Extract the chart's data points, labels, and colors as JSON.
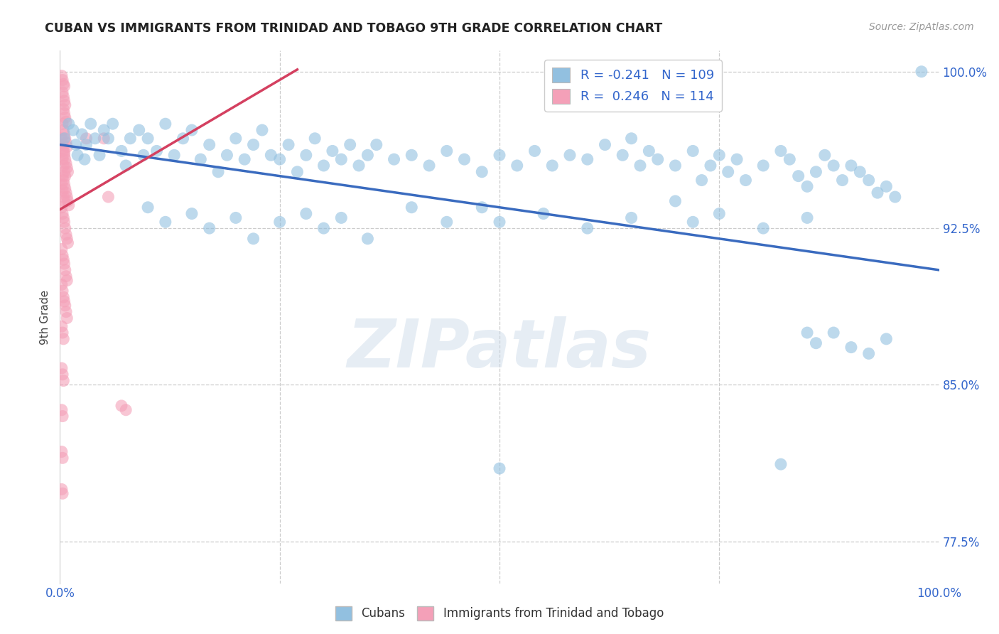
{
  "title": "CUBAN VS IMMIGRANTS FROM TRINIDAD AND TOBAGO 9TH GRADE CORRELATION CHART",
  "source": "Source: ZipAtlas.com",
  "ylabel": "9th Grade",
  "watermark": "ZIPatlas",
  "legend_blue_r": "-0.241",
  "legend_blue_n": "109",
  "legend_pink_r": "0.246",
  "legend_pink_n": "114",
  "legend_label_blue": "Cubans",
  "legend_label_pink": "Immigrants from Trinidad and Tobago",
  "xmin": 0.0,
  "xmax": 1.0,
  "ymin": 0.755,
  "ymax": 1.01,
  "ytick_vals": [
    0.775,
    0.85,
    0.925,
    1.0
  ],
  "ytick_labels": [
    "77.5%",
    "85.0%",
    "92.5%",
    "100.0%"
  ],
  "title_color": "#222222",
  "source_color": "#999999",
  "blue_color": "#92c0e0",
  "pink_color": "#f4a0b8",
  "blue_line_color": "#3a6bbf",
  "pink_line_color": "#d44060",
  "blue_line_x": [
    0.0,
    1.0
  ],
  "blue_line_y": [
    0.965,
    0.905
  ],
  "pink_line_x": [
    0.0,
    0.27
  ],
  "pink_line_y": [
    0.934,
    1.001
  ],
  "blue_scatter": [
    [
      0.005,
      0.968
    ],
    [
      0.01,
      0.975
    ],
    [
      0.015,
      0.972
    ],
    [
      0.018,
      0.965
    ],
    [
      0.02,
      0.96
    ],
    [
      0.025,
      0.97
    ],
    [
      0.028,
      0.958
    ],
    [
      0.03,
      0.965
    ],
    [
      0.035,
      0.975
    ],
    [
      0.04,
      0.968
    ],
    [
      0.045,
      0.96
    ],
    [
      0.05,
      0.972
    ],
    [
      0.055,
      0.968
    ],
    [
      0.06,
      0.975
    ],
    [
      0.07,
      0.962
    ],
    [
      0.075,
      0.955
    ],
    [
      0.08,
      0.968
    ],
    [
      0.09,
      0.972
    ],
    [
      0.095,
      0.96
    ],
    [
      0.1,
      0.968
    ],
    [
      0.11,
      0.962
    ],
    [
      0.12,
      0.975
    ],
    [
      0.13,
      0.96
    ],
    [
      0.14,
      0.968
    ],
    [
      0.15,
      0.972
    ],
    [
      0.16,
      0.958
    ],
    [
      0.17,
      0.965
    ],
    [
      0.18,
      0.952
    ],
    [
      0.19,
      0.96
    ],
    [
      0.2,
      0.968
    ],
    [
      0.21,
      0.958
    ],
    [
      0.22,
      0.965
    ],
    [
      0.23,
      0.972
    ],
    [
      0.24,
      0.96
    ],
    [
      0.25,
      0.958
    ],
    [
      0.26,
      0.965
    ],
    [
      0.27,
      0.952
    ],
    [
      0.28,
      0.96
    ],
    [
      0.29,
      0.968
    ],
    [
      0.3,
      0.955
    ],
    [
      0.31,
      0.962
    ],
    [
      0.32,
      0.958
    ],
    [
      0.33,
      0.965
    ],
    [
      0.34,
      0.955
    ],
    [
      0.35,
      0.96
    ],
    [
      0.36,
      0.965
    ],
    [
      0.38,
      0.958
    ],
    [
      0.4,
      0.96
    ],
    [
      0.42,
      0.955
    ],
    [
      0.44,
      0.962
    ],
    [
      0.46,
      0.958
    ],
    [
      0.48,
      0.952
    ],
    [
      0.5,
      0.96
    ],
    [
      0.52,
      0.955
    ],
    [
      0.54,
      0.962
    ],
    [
      0.56,
      0.955
    ],
    [
      0.58,
      0.96
    ],
    [
      0.6,
      0.958
    ],
    [
      0.62,
      0.965
    ],
    [
      0.64,
      0.96
    ],
    [
      0.65,
      0.968
    ],
    [
      0.66,
      0.955
    ],
    [
      0.67,
      0.962
    ],
    [
      0.68,
      0.958
    ],
    [
      0.7,
      0.955
    ],
    [
      0.72,
      0.962
    ],
    [
      0.73,
      0.948
    ],
    [
      0.74,
      0.955
    ],
    [
      0.75,
      0.96
    ],
    [
      0.76,
      0.952
    ],
    [
      0.77,
      0.958
    ],
    [
      0.78,
      0.948
    ],
    [
      0.8,
      0.955
    ],
    [
      0.82,
      0.962
    ],
    [
      0.83,
      0.958
    ],
    [
      0.84,
      0.95
    ],
    [
      0.85,
      0.945
    ],
    [
      0.86,
      0.952
    ],
    [
      0.87,
      0.96
    ],
    [
      0.88,
      0.955
    ],
    [
      0.89,
      0.948
    ],
    [
      0.9,
      0.955
    ],
    [
      0.91,
      0.952
    ],
    [
      0.92,
      0.948
    ],
    [
      0.93,
      0.942
    ],
    [
      0.94,
      0.945
    ],
    [
      0.95,
      0.94
    ],
    [
      0.1,
      0.935
    ],
    [
      0.12,
      0.928
    ],
    [
      0.15,
      0.932
    ],
    [
      0.17,
      0.925
    ],
    [
      0.2,
      0.93
    ],
    [
      0.22,
      0.92
    ],
    [
      0.25,
      0.928
    ],
    [
      0.28,
      0.932
    ],
    [
      0.3,
      0.925
    ],
    [
      0.32,
      0.93
    ],
    [
      0.35,
      0.92
    ],
    [
      0.4,
      0.935
    ],
    [
      0.44,
      0.928
    ],
    [
      0.48,
      0.935
    ],
    [
      0.5,
      0.928
    ],
    [
      0.55,
      0.932
    ],
    [
      0.6,
      0.925
    ],
    [
      0.65,
      0.93
    ],
    [
      0.7,
      0.938
    ],
    [
      0.72,
      0.928
    ],
    [
      0.75,
      0.932
    ],
    [
      0.8,
      0.925
    ],
    [
      0.85,
      0.93
    ],
    [
      0.85,
      0.875
    ],
    [
      0.86,
      0.87
    ],
    [
      0.88,
      0.875
    ],
    [
      0.9,
      0.868
    ],
    [
      0.92,
      0.865
    ],
    [
      0.94,
      0.872
    ],
    [
      0.5,
      0.81
    ],
    [
      0.82,
      0.812
    ],
    [
      0.98,
      1.0
    ]
  ],
  "pink_scatter": [
    [
      0.002,
      0.998
    ],
    [
      0.003,
      0.996
    ],
    [
      0.004,
      0.994
    ],
    [
      0.005,
      0.993
    ],
    [
      0.003,
      0.99
    ],
    [
      0.004,
      0.988
    ],
    [
      0.005,
      0.986
    ],
    [
      0.006,
      0.984
    ],
    [
      0.004,
      0.982
    ],
    [
      0.005,
      0.98
    ],
    [
      0.006,
      0.978
    ],
    [
      0.007,
      0.976
    ],
    [
      0.003,
      0.975
    ],
    [
      0.004,
      0.972
    ],
    [
      0.005,
      0.97
    ],
    [
      0.006,
      0.968
    ],
    [
      0.007,
      0.966
    ],
    [
      0.008,
      0.964
    ],
    [
      0.004,
      0.962
    ],
    [
      0.005,
      0.96
    ],
    [
      0.006,
      0.958
    ],
    [
      0.007,
      0.956
    ],
    [
      0.008,
      0.954
    ],
    [
      0.009,
      0.952
    ],
    [
      0.003,
      0.95
    ],
    [
      0.004,
      0.948
    ],
    [
      0.005,
      0.946
    ],
    [
      0.006,
      0.944
    ],
    [
      0.007,
      0.942
    ],
    [
      0.008,
      0.94
    ],
    [
      0.009,
      0.938
    ],
    [
      0.01,
      0.936
    ],
    [
      0.002,
      0.968
    ],
    [
      0.003,
      0.965
    ],
    [
      0.004,
      0.963
    ],
    [
      0.005,
      0.961
    ],
    [
      0.003,
      0.958
    ],
    [
      0.004,
      0.955
    ],
    [
      0.005,
      0.952
    ],
    [
      0.006,
      0.95
    ],
    [
      0.002,
      0.946
    ],
    [
      0.003,
      0.943
    ],
    [
      0.004,
      0.94
    ],
    [
      0.005,
      0.938
    ],
    [
      0.002,
      0.935
    ],
    [
      0.003,
      0.932
    ],
    [
      0.004,
      0.93
    ],
    [
      0.005,
      0.928
    ],
    [
      0.006,
      0.925
    ],
    [
      0.007,
      0.922
    ],
    [
      0.008,
      0.92
    ],
    [
      0.009,
      0.918
    ],
    [
      0.002,
      0.915
    ],
    [
      0.003,
      0.912
    ],
    [
      0.004,
      0.91
    ],
    [
      0.005,
      0.908
    ],
    [
      0.006,
      0.905
    ],
    [
      0.007,
      0.902
    ],
    [
      0.008,
      0.9
    ],
    [
      0.002,
      0.898
    ],
    [
      0.003,
      0.895
    ],
    [
      0.004,
      0.892
    ],
    [
      0.005,
      0.89
    ],
    [
      0.006,
      0.888
    ],
    [
      0.007,
      0.885
    ],
    [
      0.008,
      0.882
    ],
    [
      0.002,
      0.878
    ],
    [
      0.003,
      0.875
    ],
    [
      0.004,
      0.872
    ],
    [
      0.002,
      0.858
    ],
    [
      0.003,
      0.855
    ],
    [
      0.004,
      0.852
    ],
    [
      0.002,
      0.838
    ],
    [
      0.003,
      0.835
    ],
    [
      0.002,
      0.818
    ],
    [
      0.003,
      0.815
    ],
    [
      0.03,
      0.968
    ],
    [
      0.05,
      0.968
    ],
    [
      0.055,
      0.94
    ],
    [
      0.07,
      0.84
    ],
    [
      0.075,
      0.838
    ],
    [
      0.002,
      0.8
    ],
    [
      0.003,
      0.798
    ]
  ]
}
